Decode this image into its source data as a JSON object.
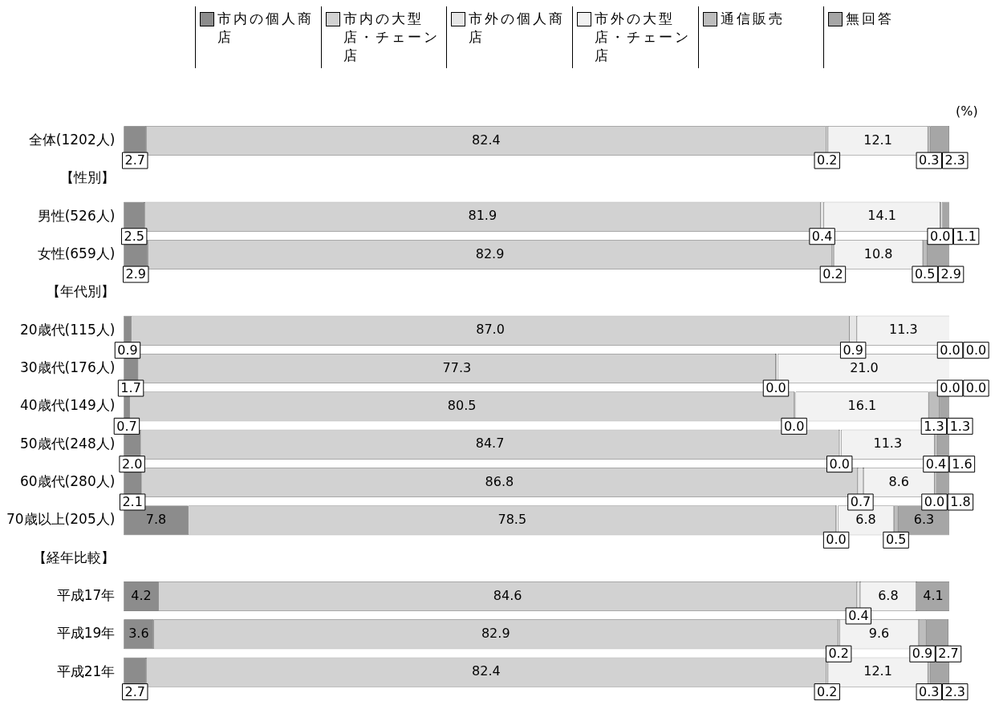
{
  "chart_data": {
    "type": "bar",
    "orientation": "horizontal",
    "stacked": true,
    "legend": "top",
    "tick_labels": "y",
    "categories": [
      "全体(1202人)",
      "【性別】",
      "男性(526人)",
      "女性(659人)",
      "【年代別】",
      "20歳代(115人)",
      "30歳代(176人)",
      "40歳代(149人)",
      "50歳代(248人)",
      "60歳代(280人)",
      "70歳以上(205人)",
      "【経年比較】",
      "平成17年",
      "平成19年",
      "平成21年"
    ],
    "xlim": [
      0,
      100
    ],
    "annotations": [
      "(%)"
    ],
    "series": [
      {
        "name": "市内の個人商店",
        "color": "#8c8c8c",
        "values": [
          2.7,
          null,
          2.5,
          2.9,
          null,
          0.9,
          1.7,
          0.7,
          2.0,
          2.1,
          7.8,
          null,
          4.2,
          3.6,
          2.7
        ],
        "value_labels": [
          "2.7",
          null,
          "2.5",
          "2.9",
          null,
          "0.9",
          "1.7",
          "0.7",
          "2.0",
          "2.1",
          "7.8",
          null,
          "4.2",
          "3.6",
          "2.7"
        ]
      },
      {
        "name": "市内の大型店・チェーン店",
        "color": "#d2d2d2",
        "values": [
          82.4,
          null,
          81.9,
          82.9,
          null,
          87.0,
          77.3,
          80.5,
          84.7,
          86.8,
          78.5,
          null,
          84.6,
          82.9,
          82.4
        ],
        "value_labels": [
          "82.4",
          null,
          "81.9",
          "82.9",
          null,
          "87.0",
          "77.3",
          "80.5",
          "84.7",
          "86.8",
          "78.5",
          null,
          "84.6",
          "82.9",
          "82.4"
        ]
      },
      {
        "name": "市外の個人商店",
        "color": "#e6e6e6",
        "values": [
          0.2,
          null,
          0.4,
          0.2,
          null,
          0.9,
          0.0,
          0.0,
          0.0,
          0.7,
          0.0,
          null,
          0.4,
          0.2,
          0.2
        ],
        "value_labels": [
          "0.2",
          null,
          "0.4",
          "0.2",
          null,
          "0.9",
          "0.0",
          "0.0",
          "0.0",
          "0.7",
          "0.0",
          null,
          "0.4",
          "0.2",
          "0.2"
        ]
      },
      {
        "name": "市外の大型店・チェーン店",
        "color": "#f2f2f2",
        "values": [
          12.1,
          null,
          14.1,
          10.8,
          null,
          11.3,
          21.0,
          16.1,
          11.3,
          8.6,
          6.8,
          null,
          6.8,
          9.6,
          12.1
        ],
        "value_labels": [
          "12.1",
          null,
          "14.1",
          "10.8",
          null,
          "11.3",
          "21.0",
          "16.1",
          "11.3",
          "8.6",
          "6.8",
          null,
          "6.8",
          "9.6",
          "12.1"
        ]
      },
      {
        "name": "通信販売",
        "color": "#bdbdbd",
        "values": [
          0.3,
          null,
          0.0,
          0.5,
          null,
          0.0,
          0.0,
          1.3,
          0.4,
          0.0,
          0.5,
          null,
          null,
          0.9,
          0.3
        ],
        "value_labels": [
          "0.3",
          null,
          "0.0",
          "0.5",
          null,
          "0.0",
          "0.0",
          "1.3",
          "0.4",
          "0.0",
          "0.5",
          null,
          null,
          "0.9",
          "0.3"
        ]
      },
      {
        "name": "無回答",
        "color": "#a6a6a6",
        "values": [
          2.3,
          null,
          1.1,
          2.9,
          null,
          0.0,
          0.0,
          1.3,
          1.6,
          1.8,
          6.3,
          null,
          4.1,
          2.7,
          2.3
        ],
        "value_labels": [
          "2.3",
          null,
          "1.1",
          "2.9",
          null,
          "0.0",
          "0.0",
          "1.3",
          "1.6",
          "1.8",
          "6.3",
          null,
          "4.1",
          "2.7",
          "2.3"
        ]
      }
    ]
  }
}
